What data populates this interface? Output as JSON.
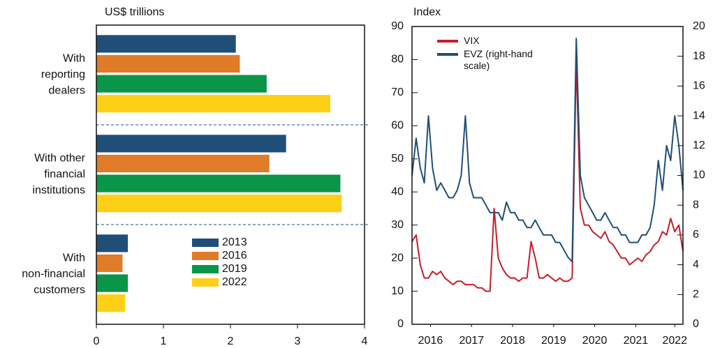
{
  "chart_data": [
    {
      "type": "hbar",
      "axis_label": "US$ trillions",
      "categories": [
        [
          "With",
          "reporting",
          "dealers"
        ],
        [
          "With other",
          "financial",
          "institutions"
        ],
        [
          "With",
          "non-financial",
          "customers"
        ]
      ],
      "series": [
        {
          "name": "2013",
          "color": "#1f4e79",
          "values": [
            2.08,
            2.83,
            0.47
          ]
        },
        {
          "name": "2016",
          "color": "#e07b28",
          "values": [
            2.14,
            2.58,
            0.39
          ]
        },
        {
          "name": "2019",
          "color": "#0a9548",
          "values": [
            2.54,
            3.64,
            0.47
          ]
        },
        {
          "name": "2022",
          "color": "#fdd017",
          "values": [
            3.49,
            3.66,
            0.43
          ]
        }
      ],
      "xlim": [
        0,
        4
      ],
      "xticks": [
        0,
        1,
        2,
        3,
        4
      ]
    },
    {
      "type": "line",
      "axis_label": "Index",
      "x": [
        2016.0,
        2016.1,
        2016.2,
        2016.3,
        2016.4,
        2016.5,
        2016.6,
        2016.7,
        2016.8,
        2016.9,
        2017.0,
        2017.1,
        2017.2,
        2017.3,
        2017.4,
        2017.5,
        2017.6,
        2017.7,
        2017.8,
        2017.9,
        2018.0,
        2018.1,
        2018.2,
        2018.3,
        2018.4,
        2018.5,
        2018.6,
        2018.7,
        2018.8,
        2018.9,
        2019.0,
        2019.1,
        2019.2,
        2019.3,
        2019.4,
        2019.5,
        2019.6,
        2019.7,
        2019.8,
        2019.9,
        2020.0,
        2020.1,
        2020.2,
        2020.3,
        2020.4,
        2020.5,
        2020.6,
        2020.7,
        2020.8,
        2020.9,
        2021.0,
        2021.1,
        2021.2,
        2021.3,
        2021.4,
        2021.5,
        2021.6,
        2021.7,
        2021.8,
        2021.9,
        2022.0,
        2022.1,
        2022.2,
        2022.3,
        2022.4,
        2022.5,
        2022.6
      ],
      "series": [
        {
          "name": "VIX",
          "color": "#c41e2a",
          "values": [
            25,
            27,
            18,
            14,
            14,
            16,
            15,
            16,
            14,
            13,
            12,
            13,
            13,
            12,
            12,
            12,
            11,
            11,
            10,
            10,
            35,
            20,
            17,
            15,
            14,
            14,
            13,
            14,
            14,
            25,
            20,
            14,
            14,
            15,
            14,
            13,
            14,
            13,
            13,
            14,
            80,
            35,
            30,
            30,
            28,
            27,
            26,
            28,
            25,
            24,
            22,
            20,
            20,
            18,
            19,
            20,
            19,
            21,
            22,
            24,
            25,
            28,
            27,
            32,
            28,
            30,
            22
          ]
        },
        {
          "name": "EVZ (right-hand scale)",
          "color": "#1f4e79",
          "axis": "y2",
          "values": [
            10,
            12.5,
            10.5,
            9.5,
            14,
            10.5,
            9,
            9.5,
            9,
            8.5,
            8.5,
            9,
            10,
            14,
            9.5,
            8.5,
            8.5,
            8.5,
            8,
            7.5,
            7.5,
            7.5,
            7,
            8.2,
            7.5,
            7.5,
            7,
            7,
            6.5,
            6.5,
            7,
            6.5,
            6,
            6,
            6,
            5.5,
            5.5,
            5,
            4.5,
            4.2,
            19.2,
            10,
            8.5,
            8,
            7.5,
            7,
            7,
            7.5,
            7,
            6.5,
            6.5,
            6,
            6,
            5.5,
            5.5,
            5.5,
            6,
            6,
            6.5,
            8,
            11,
            9,
            12,
            11,
            14,
            12,
            9
          ]
        }
      ],
      "xlim": [
        2016.0,
        2022.6
      ],
      "xticks": [
        {
          "value": 2016.45,
          "label": "2016"
        },
        {
          "value": 2017.45,
          "label": "2017"
        },
        {
          "value": 2018.45,
          "label": "2018"
        },
        {
          "value": 2019.45,
          "label": "2019"
        },
        {
          "value": 2020.45,
          "label": "2020"
        },
        {
          "value": 2021.45,
          "label": "2021"
        },
        {
          "value": 2022.4,
          "label": "2022"
        }
      ],
      "ylim": [
        0,
        90
      ],
      "yticks": [
        0,
        10,
        20,
        30,
        40,
        50,
        60,
        70,
        80,
        90
      ],
      "y2lim": [
        0,
        20
      ],
      "y2ticks": [
        0,
        2,
        4,
        6,
        8,
        10,
        12,
        14,
        16,
        18,
        20
      ]
    }
  ]
}
